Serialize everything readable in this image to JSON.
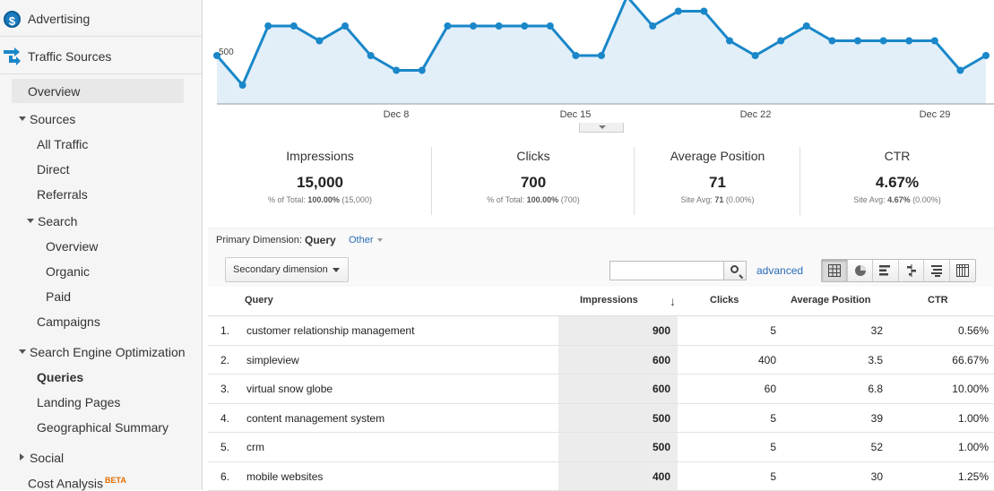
{
  "sidebar": {
    "advertising": "Advertising",
    "traffic_sources": "Traffic Sources",
    "overview": "Overview",
    "sources": "Sources",
    "all_traffic": "All Traffic",
    "direct": "Direct",
    "referrals": "Referrals",
    "search": "Search",
    "search_overview": "Overview",
    "organic": "Organic",
    "paid": "Paid",
    "campaigns": "Campaigns",
    "seo": "Search Engine Optimization",
    "queries": "Queries",
    "landing_pages": "Landing Pages",
    "geo_summary": "Geographical Summary",
    "social": "Social",
    "cost_analysis": "Cost Analysis",
    "beta": "BETA"
  },
  "chart_data": {
    "type": "area",
    "y_tick_label": "500",
    "x_tick_labels": [
      "Dec 8",
      "Dec 15",
      "Dec 22",
      "Dec 29"
    ],
    "y_values": [
      500,
      400,
      600,
      600,
      550,
      600,
      500,
      450,
      450,
      600,
      600,
      600,
      600,
      600,
      500,
      500,
      700,
      600,
      650,
      650,
      550,
      500,
      550,
      600,
      550,
      550,
      550,
      550,
      550,
      450,
      500
    ],
    "line_color": "#1a87c9",
    "fill_color": "#e2eff8"
  },
  "metrics": [
    {
      "label": "Impressions",
      "value": "15,000",
      "sub_prefix": "% of Total: ",
      "sub_bold": "100.00%",
      "sub_suffix": " (15,000)"
    },
    {
      "label": "Clicks",
      "value": "700",
      "sub_prefix": "% of Total: ",
      "sub_bold": "100.00%",
      "sub_suffix": " (700)"
    },
    {
      "label": "Average Position",
      "value": "71",
      "sub_prefix": "Site Avg: ",
      "sub_bold": "71",
      "sub_suffix": " (0.00%)"
    },
    {
      "label": "CTR",
      "value": "4.67%",
      "sub_prefix": "Site Avg: ",
      "sub_bold": "4.67%",
      "sub_suffix": " (0.00%)"
    }
  ],
  "controls": {
    "primary_dimension_label": "Primary Dimension:",
    "primary_dimension_value": "Query",
    "other": "Other",
    "secondary_dimension": "Secondary dimension",
    "search_value": "",
    "advanced": "advanced"
  },
  "table": {
    "headers": {
      "query": "Query",
      "impressions": "Impressions",
      "clicks": "Clicks",
      "avg_position": "Average Position",
      "ctr": "CTR"
    },
    "rows": [
      {
        "num": "1.",
        "query": "customer relationship management",
        "impressions": "900",
        "clicks": "5",
        "avg_position": "32",
        "ctr": "0.56%"
      },
      {
        "num": "2.",
        "query": "simpleview",
        "impressions": "600",
        "clicks": "400",
        "avg_position": "3.5",
        "ctr": "66.67%"
      },
      {
        "num": "3.",
        "query": "virtual snow globe",
        "impressions": "600",
        "clicks": "60",
        "avg_position": "6.8",
        "ctr": "10.00%"
      },
      {
        "num": "4.",
        "query": "content management system",
        "impressions": "500",
        "clicks": "5",
        "avg_position": "39",
        "ctr": "1.00%"
      },
      {
        "num": "5.",
        "query": "crm",
        "impressions": "500",
        "clicks": "5",
        "avg_position": "52",
        "ctr": "1.00%"
      },
      {
        "num": "6.",
        "query": "mobile websites",
        "impressions": "400",
        "clicks": "5",
        "avg_position": "30",
        "ctr": "1.25%"
      }
    ]
  }
}
